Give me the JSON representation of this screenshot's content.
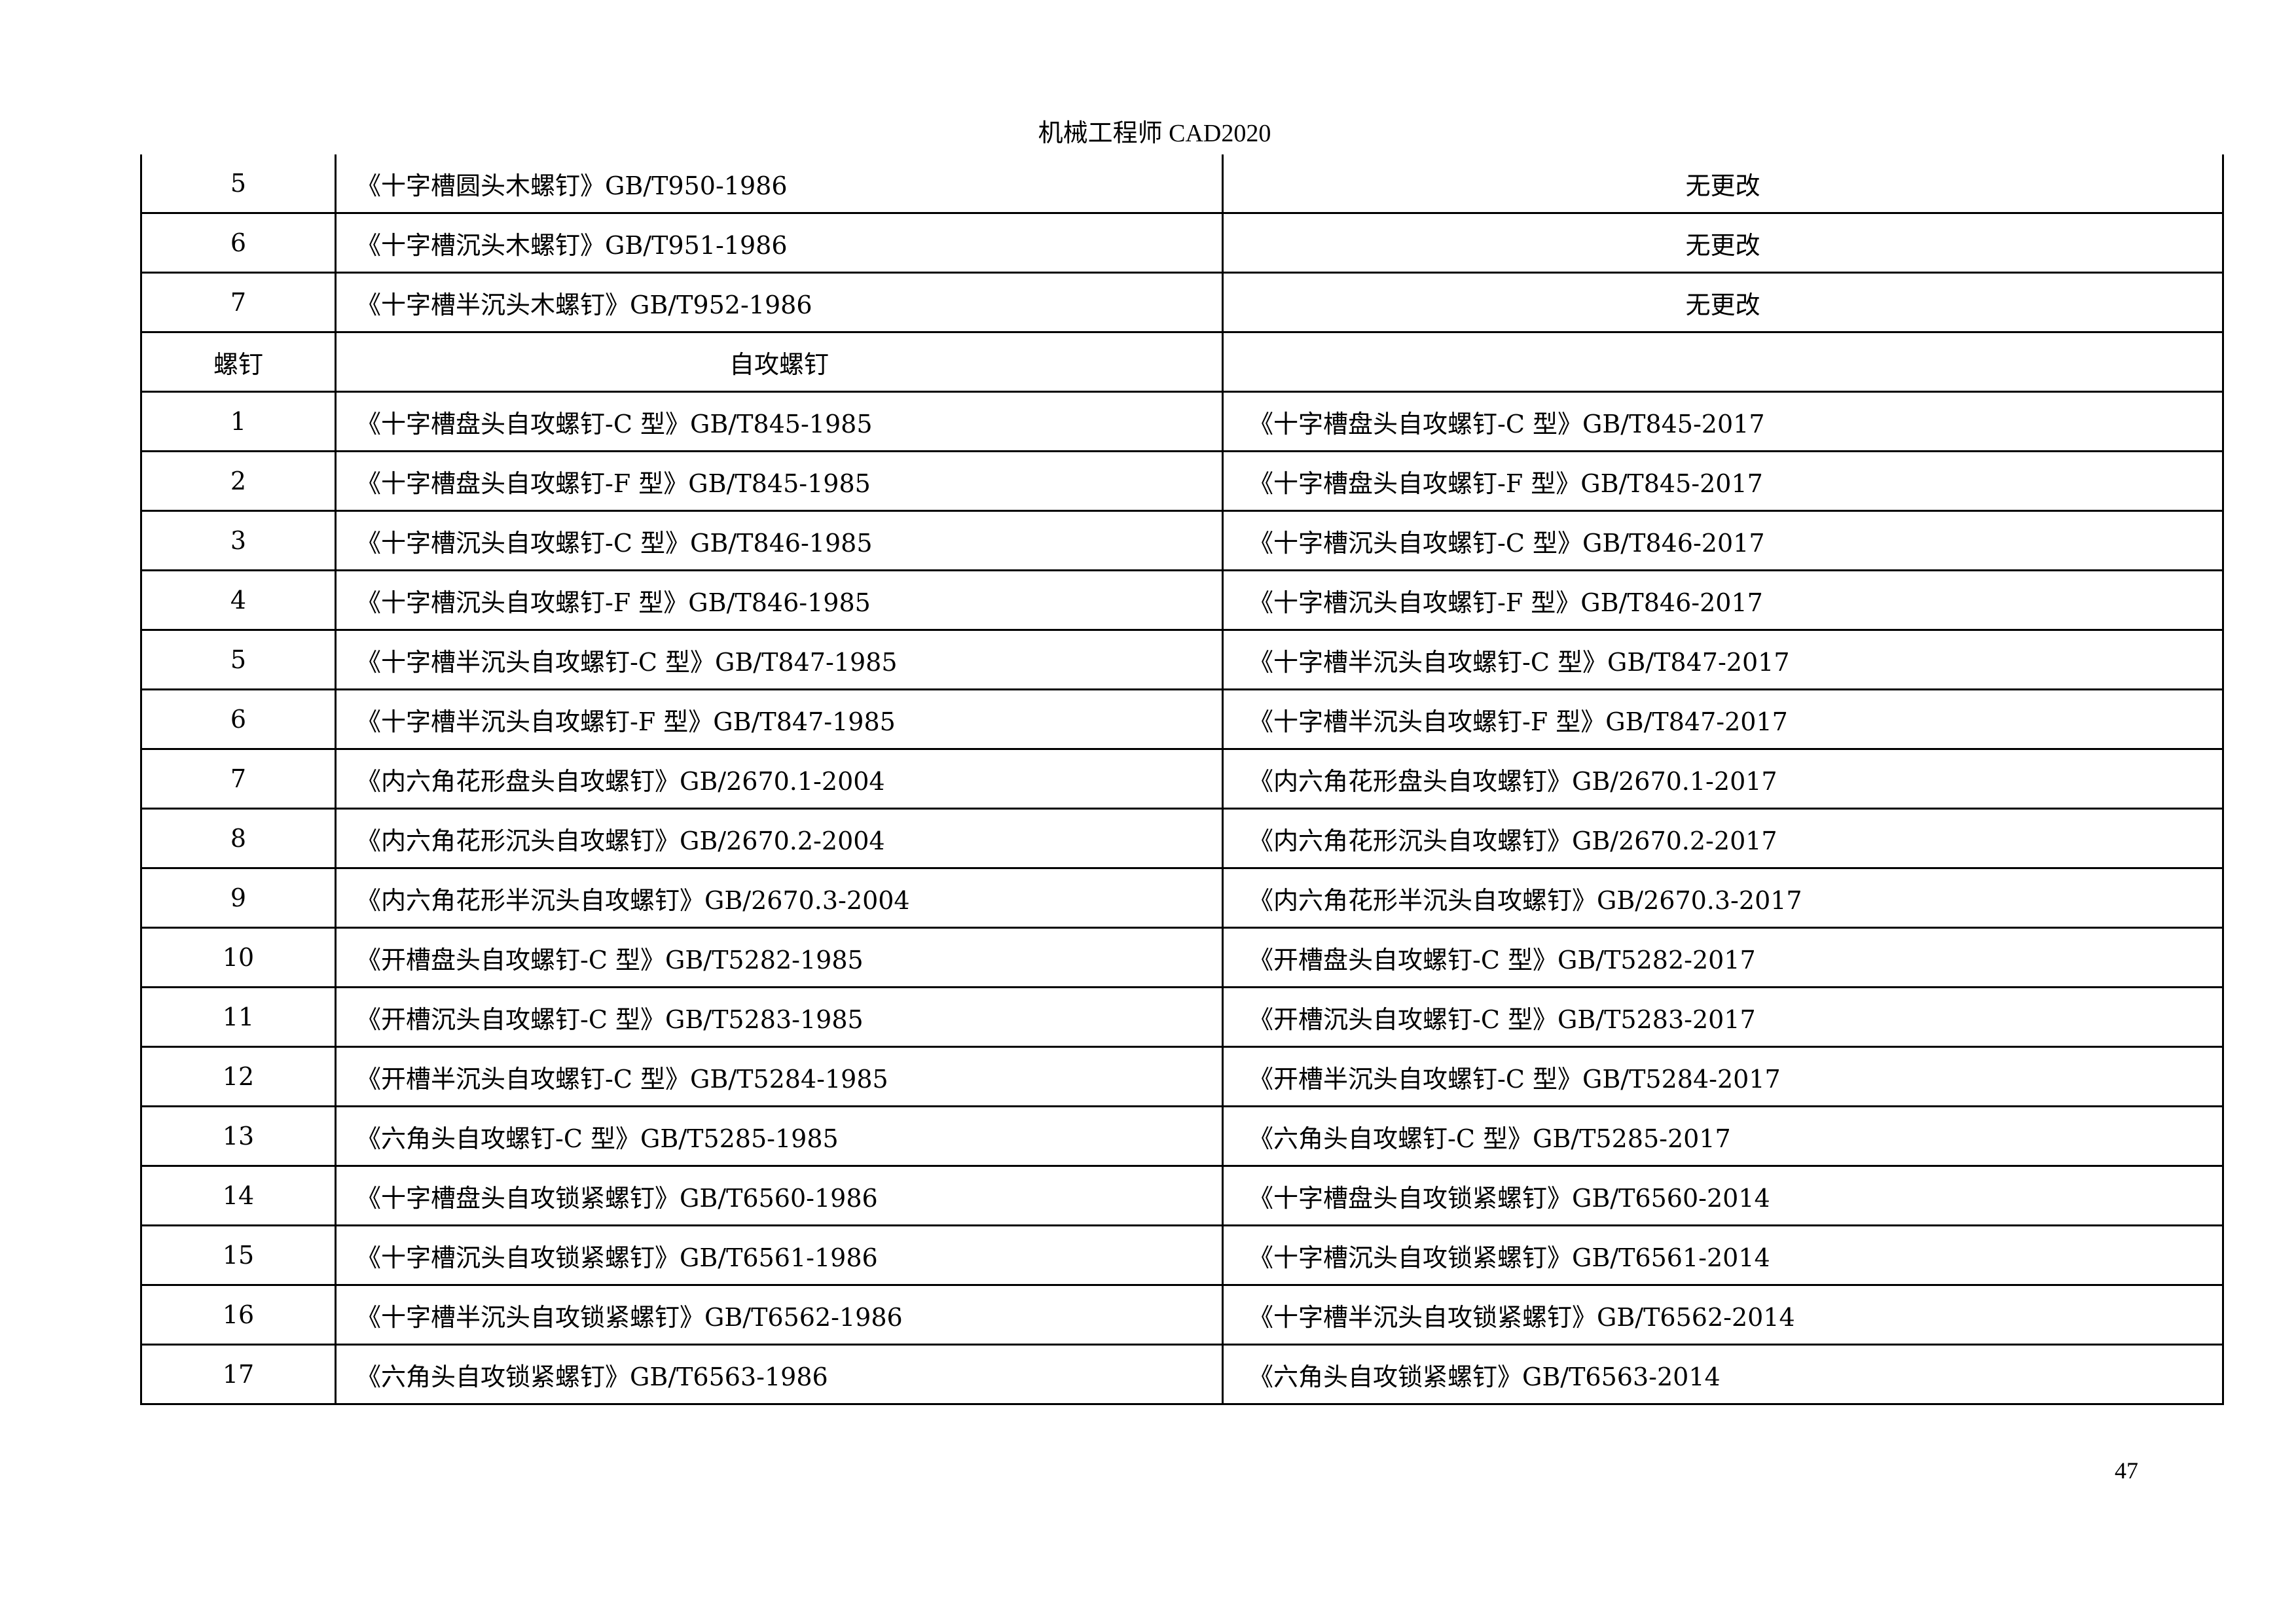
{
  "header": "机械工程师 CAD2020",
  "page_number": "47",
  "rows": [
    {
      "no": "5",
      "old": "《十字槽圆头木螺钉》GB/T950-1986",
      "new": "无更改",
      "new_center": true
    },
    {
      "no": "6",
      "old": "《十字槽沉头木螺钉》GB/T951-1986",
      "new": "无更改",
      "new_center": true
    },
    {
      "no": "7",
      "old": "《十字槽半沉头木螺钉》GB/T952-1986",
      "new": "无更改",
      "new_center": true
    },
    {
      "no": "螺钉",
      "old": "自攻螺钉",
      "new": "",
      "old_center": true
    },
    {
      "no": "1",
      "old": "《十字槽盘头自攻螺钉-C 型》GB/T845-1985",
      "new": "《十字槽盘头自攻螺钉-C 型》GB/T845-2017"
    },
    {
      "no": "2",
      "old": "《十字槽盘头自攻螺钉-F 型》GB/T845-1985",
      "new": "《十字槽盘头自攻螺钉-F 型》GB/T845-2017"
    },
    {
      "no": "3",
      "old": "《十字槽沉头自攻螺钉-C 型》GB/T846-1985",
      "new": "《十字槽沉头自攻螺钉-C 型》GB/T846-2017"
    },
    {
      "no": "4",
      "old": "《十字槽沉头自攻螺钉-F 型》GB/T846-1985",
      "new": "《十字槽沉头自攻螺钉-F 型》GB/T846-2017"
    },
    {
      "no": "5",
      "old": "《十字槽半沉头自攻螺钉-C 型》GB/T847-1985",
      "new": "《十字槽半沉头自攻螺钉-C 型》GB/T847-2017"
    },
    {
      "no": "6",
      "old": "《十字槽半沉头自攻螺钉-F 型》GB/T847-1985",
      "new": "《十字槽半沉头自攻螺钉-F 型》GB/T847-2017"
    },
    {
      "no": "7",
      "old": "《内六角花形盘头自攻螺钉》GB/2670.1-2004",
      "new": "《内六角花形盘头自攻螺钉》GB/2670.1-2017"
    },
    {
      "no": "8",
      "old": "《内六角花形沉头自攻螺钉》GB/2670.2-2004",
      "new": "《内六角花形沉头自攻螺钉》GB/2670.2-2017"
    },
    {
      "no": "9",
      "old": "《内六角花形半沉头自攻螺钉》GB/2670.3-2004",
      "new": "《内六角花形半沉头自攻螺钉》GB/2670.3-2017"
    },
    {
      "no": "10",
      "old": "《开槽盘头自攻螺钉-C 型》GB/T5282-1985",
      "new": "《开槽盘头自攻螺钉-C 型》GB/T5282-2017"
    },
    {
      "no": "11",
      "old": "《开槽沉头自攻螺钉-C 型》GB/T5283-1985",
      "new": "《开槽沉头自攻螺钉-C 型》GB/T5283-2017"
    },
    {
      "no": "12",
      "old": "《开槽半沉头自攻螺钉-C 型》GB/T5284-1985",
      "new": "《开槽半沉头自攻螺钉-C 型》GB/T5284-2017"
    },
    {
      "no": "13",
      "old": "《六角头自攻螺钉-C 型》GB/T5285-1985",
      "new": "《六角头自攻螺钉-C 型》GB/T5285-2017"
    },
    {
      "no": "14",
      "old": "《十字槽盘头自攻锁紧螺钉》GB/T6560-1986",
      "new": "《十字槽盘头自攻锁紧螺钉》GB/T6560-2014"
    },
    {
      "no": "15",
      "old": "《十字槽沉头自攻锁紧螺钉》GB/T6561-1986",
      "new": "《十字槽沉头自攻锁紧螺钉》GB/T6561-2014"
    },
    {
      "no": "16",
      "old": "《十字槽半沉头自攻锁紧螺钉》GB/T6562-1986",
      "new": "《十字槽半沉头自攻锁紧螺钉》GB/T6562-2014"
    },
    {
      "no": "17",
      "old": "《六角头自攻锁紧螺钉》GB/T6563-1986",
      "new": "《六角头自攻锁紧螺钉》GB/T6563-2014"
    }
  ]
}
